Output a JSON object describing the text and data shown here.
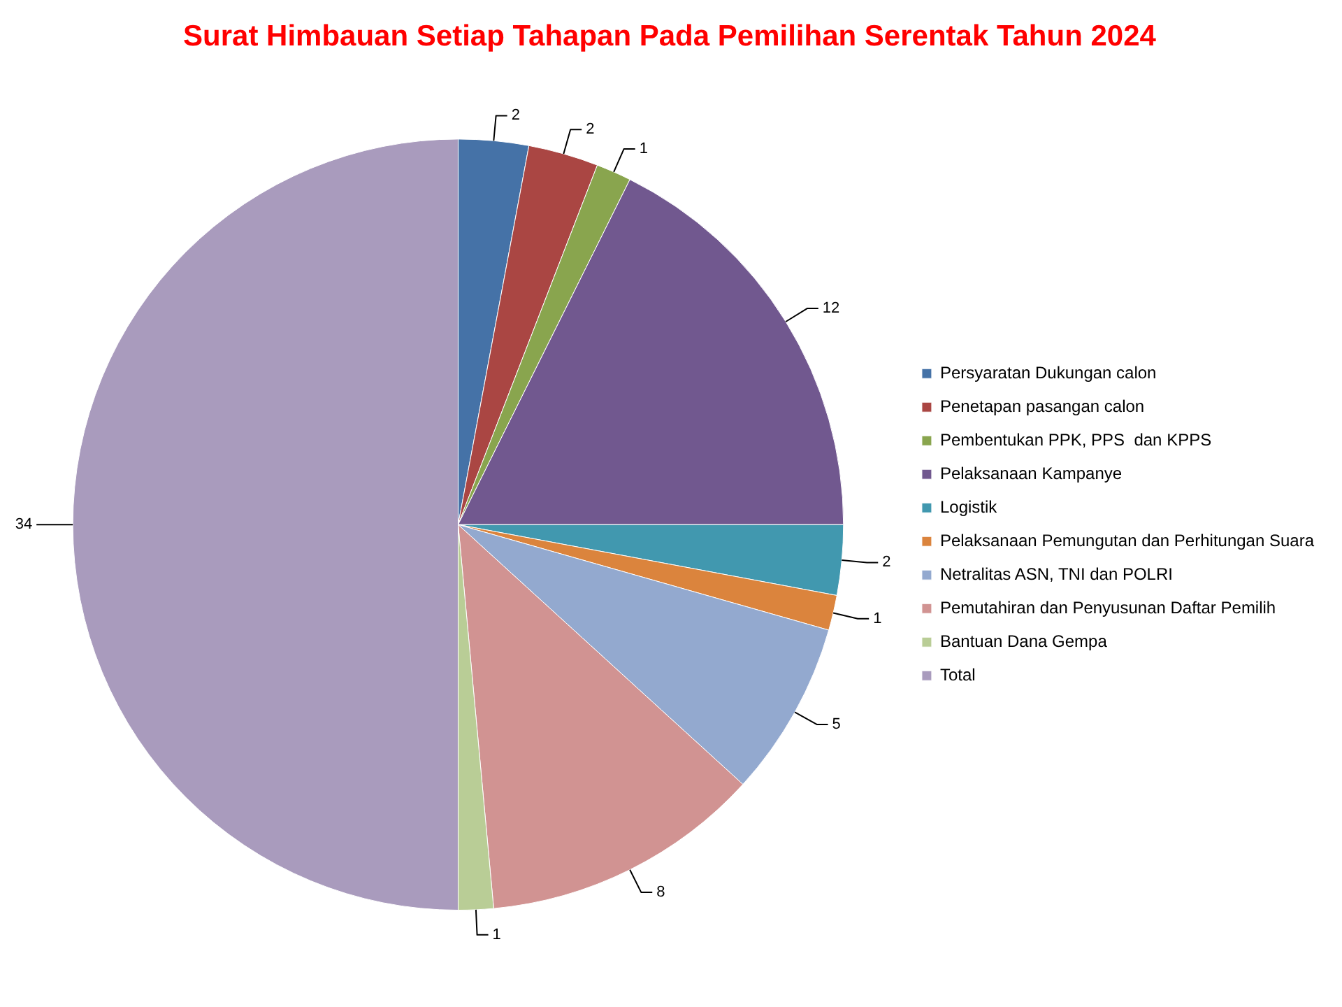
{
  "chart_data": {
    "type": "pie",
    "title": "Surat Himbauan Setiap Tahapan Pada Pemilihan Serentak Tahun 2024",
    "categories": [
      "Persyaratan Dukungan calon",
      "Penetapan pasangan calon",
      "Pembentukan PPK, PPS  dan KPPS",
      "Pelaksanaan Kampanye",
      "Logistik",
      "Pelaksanaan Pemungutan dan Perhitungan Suara",
      "Netralitas ASN, TNI dan POLRI",
      "Pemutahiran dan Penyusunan Daftar Pemilih",
      "Bantuan Dana Gempa",
      "Total"
    ],
    "values": [
      2,
      2,
      1,
      12,
      2,
      1,
      5,
      8,
      1,
      34
    ],
    "colors": [
      "#4572a7",
      "#aa4643",
      "#89a54e",
      "#71588f",
      "#4198af",
      "#db843d",
      "#93a9cf",
      "#d19392",
      "#b9cd96",
      "#a99bbd"
    ],
    "legend": "right",
    "data_labels": true
  }
}
